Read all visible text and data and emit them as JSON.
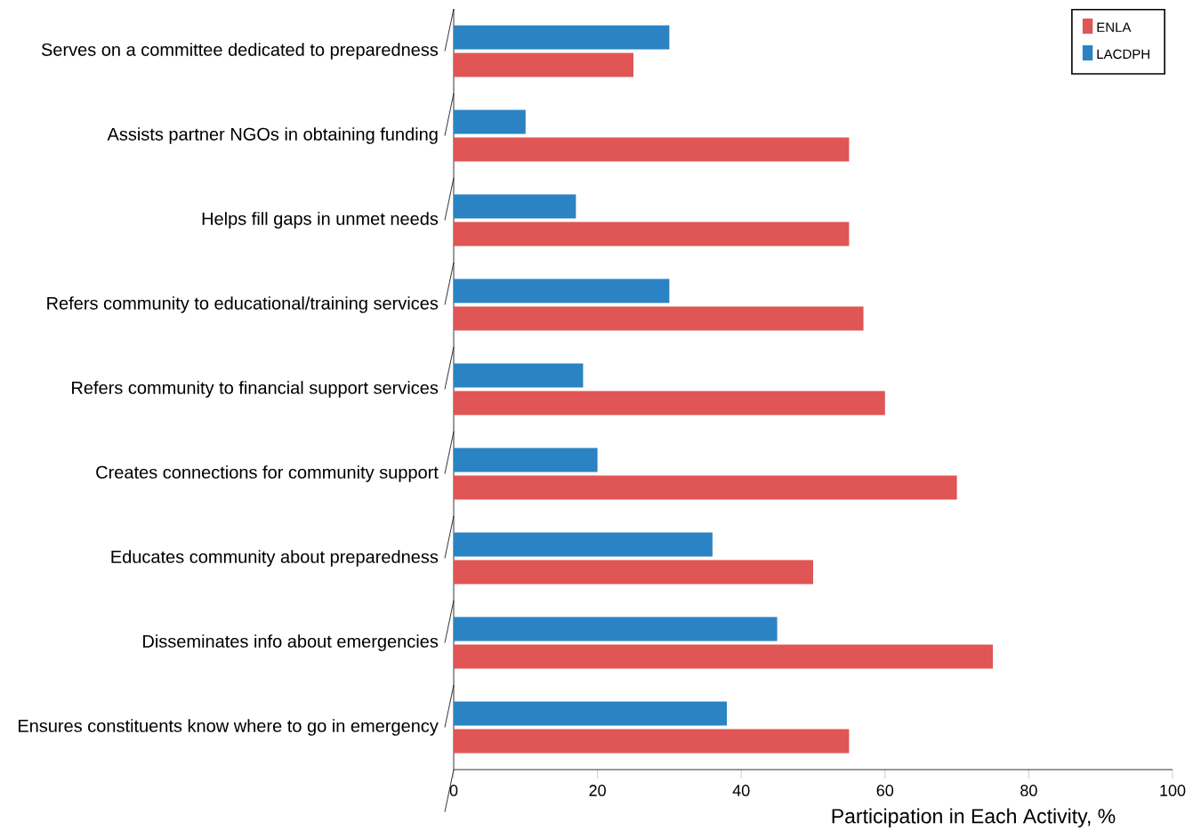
{
  "chart_data": {
    "type": "bar",
    "orientation": "horizontal",
    "xlabel": "Participation in Each Activity, %",
    "categories": [
      "Serves on a committee dedicated to preparedness",
      "Assists partner NGOs in obtaining funding",
      "Helps fill gaps in unmet needs",
      "Refers community to educational/training services",
      "Refers community to financial support services",
      "Creates connections for community support",
      "Educates community about preparedness",
      "Disseminates info about emergencies",
      "Ensures constituents know where to go in emergency"
    ],
    "series": [
      {
        "name": "ENLA",
        "color": "#e05555",
        "values": [
          25,
          55,
          55,
          57,
          60,
          70,
          50,
          75,
          55
        ]
      },
      {
        "name": "LACDPH",
        "color": "#2b83c4",
        "values": [
          30,
          10,
          17,
          30,
          18,
          20,
          36,
          45,
          38
        ]
      }
    ],
    "xlim": [
      0,
      100
    ],
    "xticks": [
      0,
      20,
      40,
      60,
      80,
      100
    ],
    "grid": false,
    "legend": "top right"
  }
}
